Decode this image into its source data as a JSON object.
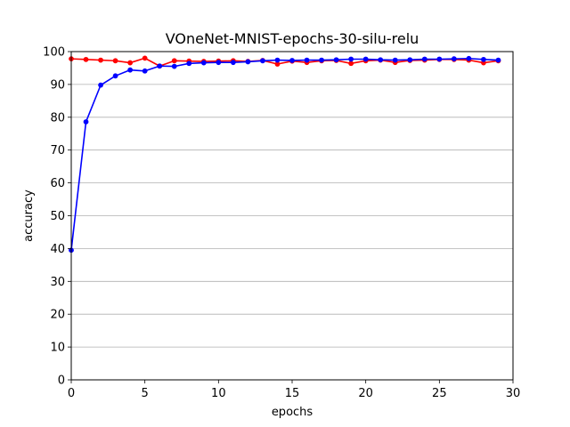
{
  "chart_data": {
    "type": "line",
    "title": "VOneNet-MNIST-epochs-30-silu-relu",
    "xlabel": "epochs",
    "ylabel": "accuracy",
    "xlim": [
      0,
      30
    ],
    "ylim": [
      0,
      100
    ],
    "xticks": [
      0,
      5,
      10,
      15,
      20,
      25,
      30
    ],
    "yticks": [
      0,
      10,
      20,
      30,
      40,
      50,
      60,
      70,
      80,
      90,
      100
    ],
    "grid": "y-major",
    "legend": "none",
    "x": [
      0,
      1,
      2,
      3,
      4,
      5,
      6,
      7,
      8,
      9,
      10,
      11,
      12,
      13,
      14,
      15,
      16,
      17,
      18,
      19,
      20,
      21,
      22,
      23,
      24,
      25,
      26,
      27,
      28,
      29
    ],
    "series": [
      {
        "color": "#ff0000",
        "marker": "circle",
        "values": [
          97.8,
          97.6,
          97.4,
          97.2,
          96.6,
          98.0,
          95.6,
          97.2,
          97.1,
          97.0,
          97.1,
          97.2,
          97.0,
          97.3,
          96.2,
          97.1,
          96.7,
          97.2,
          97.3,
          96.4,
          97.2,
          97.4,
          96.7,
          97.3,
          97.4,
          97.6,
          97.6,
          97.4,
          96.6,
          97.2
        ]
      },
      {
        "color": "#0000ff",
        "marker": "circle",
        "values": [
          39.5,
          78.6,
          89.8,
          92.6,
          94.4,
          94.1,
          95.6,
          95.5,
          96.4,
          96.6,
          96.7,
          96.7,
          96.9,
          97.2,
          97.4,
          97.3,
          97.4,
          97.4,
          97.5,
          97.7,
          97.7,
          97.5,
          97.4,
          97.5,
          97.7,
          97.7,
          97.8,
          97.9,
          97.6,
          97.4
        ]
      }
    ]
  }
}
